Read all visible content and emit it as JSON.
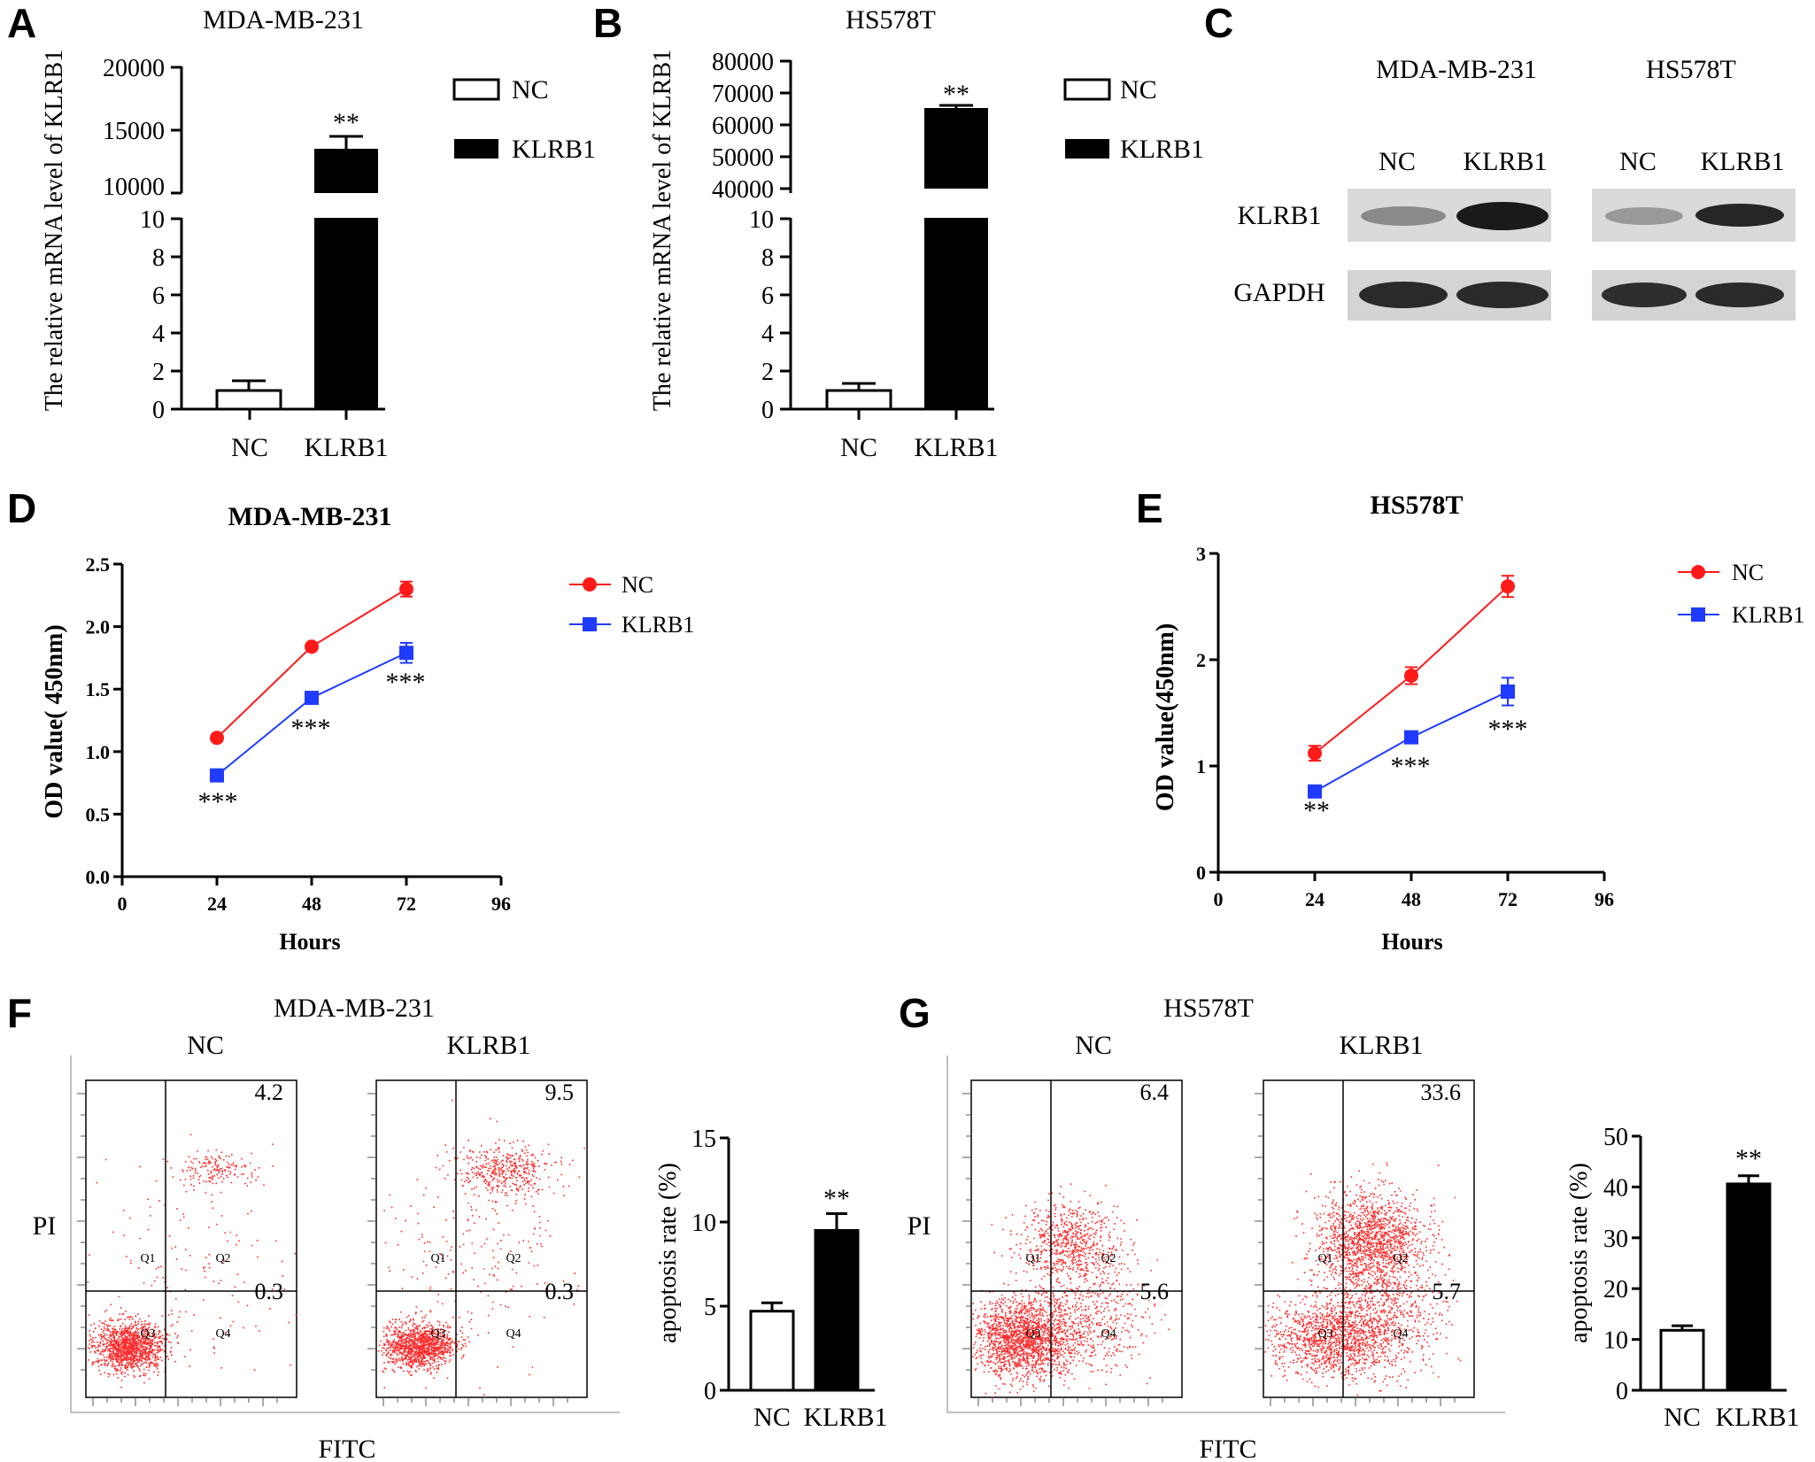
{
  "colors": {
    "nc_line": "#ff1a1a",
    "klrb1_line": "#1f3bff",
    "bar_fill": "#000000",
    "dot": "#ff2a2a"
  },
  "panels": {
    "A": {
      "letter": "A",
      "title": "MDA-MB-231",
      "ylabel": "The relative mRNA level of KLRB1",
      "lower_ticks": [
        "0",
        "2",
        "4",
        "6",
        "8",
        "10"
      ],
      "upper_ticks": [
        "10000",
        "15000",
        "20000"
      ],
      "categories": [
        "NC",
        "KLRB1"
      ],
      "sig": "**",
      "legend": [
        "NC",
        "KLRB1"
      ]
    },
    "B": {
      "letter": "B",
      "title": "HS578T",
      "ylabel": "The relative mRNA level of KLRB1",
      "lower_ticks": [
        "0",
        "2",
        "4",
        "6",
        "8",
        "10"
      ],
      "upper_ticks": [
        "40000",
        "50000",
        "60000",
        "70000",
        "80000"
      ],
      "categories": [
        "NC",
        "KLRB1"
      ],
      "sig": "**",
      "legend": [
        "NC",
        "KLRB1"
      ]
    },
    "C": {
      "letter": "C",
      "cells": [
        "MDA-MB-231",
        "HS578T"
      ],
      "lanes": [
        "NC",
        "KLRB1",
        "NC",
        "KLRB1"
      ],
      "rows": [
        "KLRB1",
        "GAPDH"
      ]
    },
    "D": {
      "letter": "D",
      "title": "MDA-MB-231",
      "ylabel": "OD value( 450nm)",
      "xlabel": "Hours",
      "yticks": [
        "0.0",
        "0.5",
        "1.0",
        "1.5",
        "2.0",
        "2.5"
      ],
      "xticks": [
        "0",
        "24",
        "48",
        "72",
        "96"
      ],
      "legend": [
        "NC",
        "KLRB1"
      ],
      "sig": [
        "***",
        "***",
        "***"
      ]
    },
    "E": {
      "letter": "E",
      "title": "HS578T",
      "ylabel": "OD value(450nm)",
      "xlabel": "Hours",
      "yticks": [
        "0",
        "1",
        "2",
        "3"
      ],
      "xticks": [
        "0",
        "24",
        "48",
        "72",
        "96"
      ],
      "legend": [
        "NC",
        "KLRB1"
      ],
      "sig": [
        "**",
        "***",
        "***"
      ]
    },
    "F": {
      "letter": "F",
      "title": "MDA-MB-231",
      "conditions": [
        "NC",
        "KLRB1"
      ],
      "xaxis": "FITC",
      "yaxis": "PI",
      "quadrants": [
        "Q1",
        "Q2",
        "Q3",
        "Q4"
      ],
      "values": [
        [
          "4.2",
          "0.3"
        ],
        [
          "9.5",
          "0.3"
        ]
      ],
      "bar_ylabel": "apoptosis rate (%)",
      "bar_ticks": [
        "0",
        "5",
        "10",
        "15"
      ],
      "categories": [
        "NC",
        "KLRB1"
      ],
      "sig": "**"
    },
    "G": {
      "letter": "G",
      "title": "HS578T",
      "conditions": [
        "NC",
        "KLRB1"
      ],
      "xaxis": "FITC",
      "yaxis": "PI",
      "quadrants": [
        "Q1",
        "Q2",
        "Q3",
        "Q4"
      ],
      "values": [
        [
          "6.4",
          "5.6"
        ],
        [
          "33.6",
          "5.7"
        ]
      ],
      "bar_ylabel": "apoptosis rate (%)",
      "bar_ticks": [
        "0",
        "10",
        "20",
        "30",
        "40",
        "50"
      ],
      "categories": [
        "NC",
        "KLRB1"
      ],
      "sig": "**"
    }
  },
  "chart_data": [
    {
      "panel": "A",
      "type": "bar",
      "title": "MDA-MB-231",
      "ylabel": "The relative mRNA level of KLRB1",
      "categories": [
        "NC",
        "KLRB1"
      ],
      "values": [
        1.0,
        13300
      ],
      "errors": [
        0.5,
        1000
      ],
      "y_axis_break": {
        "lower": [
          0,
          10
        ],
        "upper": [
          10000,
          20000
        ]
      },
      "legend": [
        "NC",
        "KLRB1"
      ],
      "legend_position": "top-right"
    },
    {
      "panel": "B",
      "type": "bar",
      "title": "HS578T",
      "ylabel": "The relative mRNA level of KLRB1",
      "categories": [
        "NC",
        "KLRB1"
      ],
      "values": [
        1.0,
        65000
      ],
      "errors": [
        0.4,
        500
      ],
      "y_axis_break": {
        "lower": [
          0,
          10
        ],
        "upper": [
          40000,
          80000
        ]
      },
      "legend": [
        "NC",
        "KLRB1"
      ],
      "legend_position": "top-right"
    },
    {
      "panel": "D",
      "type": "line",
      "title": "MDA-MB-231",
      "xlabel": "Hours",
      "ylabel": "OD value( 450nm)",
      "x": [
        24,
        48,
        72
      ],
      "xlim": [
        0,
        96
      ],
      "ylim": [
        0,
        2.5
      ],
      "series": [
        {
          "name": "NC",
          "values": [
            1.11,
            1.84,
            2.3
          ],
          "errors": [
            0.02,
            0.02,
            0.06
          ]
        },
        {
          "name": "KLRB1",
          "values": [
            0.81,
            1.43,
            1.79
          ],
          "errors": [
            0.02,
            0.02,
            0.08
          ]
        }
      ],
      "legend_position": "top-right"
    },
    {
      "panel": "E",
      "type": "line",
      "title": "HS578T",
      "xlabel": "Hours",
      "ylabel": "OD value(450nm)",
      "x": [
        24,
        48,
        72
      ],
      "xlim": [
        0,
        96
      ],
      "ylim": [
        0,
        3
      ],
      "series": [
        {
          "name": "NC",
          "values": [
            1.12,
            1.85,
            2.69
          ],
          "errors": [
            0.07,
            0.08,
            0.1
          ]
        },
        {
          "name": "KLRB1",
          "values": [
            0.76,
            1.27,
            1.7
          ],
          "errors": [
            0.02,
            0.04,
            0.13
          ]
        }
      ],
      "legend_position": "top-right"
    },
    {
      "panel": "F",
      "type": "bar",
      "ylabel": "apoptosis rate (%)",
      "categories": [
        "NC",
        "KLRB1"
      ],
      "values": [
        4.7,
        9.5
      ],
      "errors": [
        0.5,
        1.0
      ],
      "ylim": [
        0,
        15
      ]
    },
    {
      "panel": "G",
      "type": "bar",
      "ylabel": "apoptosis rate (%)",
      "categories": [
        "NC",
        "KLRB1"
      ],
      "values": [
        11.8,
        40.6
      ],
      "errors": [
        0.9,
        1.6
      ],
      "ylim": [
        0,
        50
      ]
    }
  ]
}
